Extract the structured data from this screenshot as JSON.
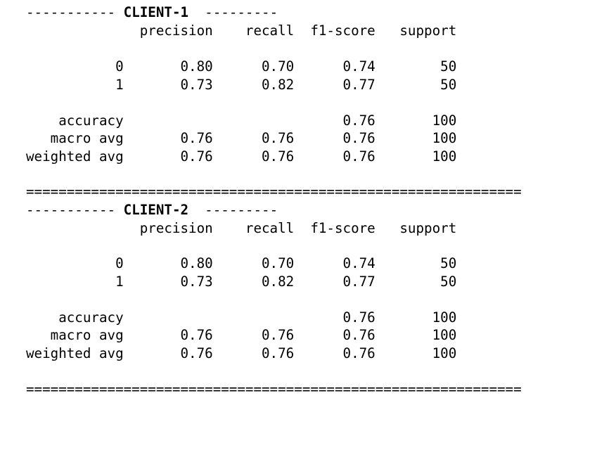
{
  "output": {
    "clients": [
      {
        "title_prefix": "-----------",
        "title_name": "CLIENT-1",
        "title_suffix": "---------",
        "header_line": "              precision    recall  f1-score   support",
        "rows": [
          "           0       0.80      0.70      0.74        50",
          "           1       0.73      0.82      0.77        50",
          "    accuracy                           0.76       100",
          "   macro avg       0.76      0.76      0.76       100",
          "weighted avg       0.76      0.76      0.76       100"
        ],
        "separator": "============================================================="
      },
      {
        "title_prefix": "-----------",
        "title_name": "CLIENT-2",
        "title_suffix": "---------",
        "header_line": "              precision    recall  f1-score   support",
        "rows": [
          "           0       0.80      0.70      0.74        50",
          "           1       0.73      0.82      0.77        50",
          "    accuracy                           0.76       100",
          "   macro avg       0.76      0.76      0.76       100",
          "weighted avg       0.76      0.76      0.76       100"
        ],
        "separator": "============================================================="
      }
    ]
  }
}
